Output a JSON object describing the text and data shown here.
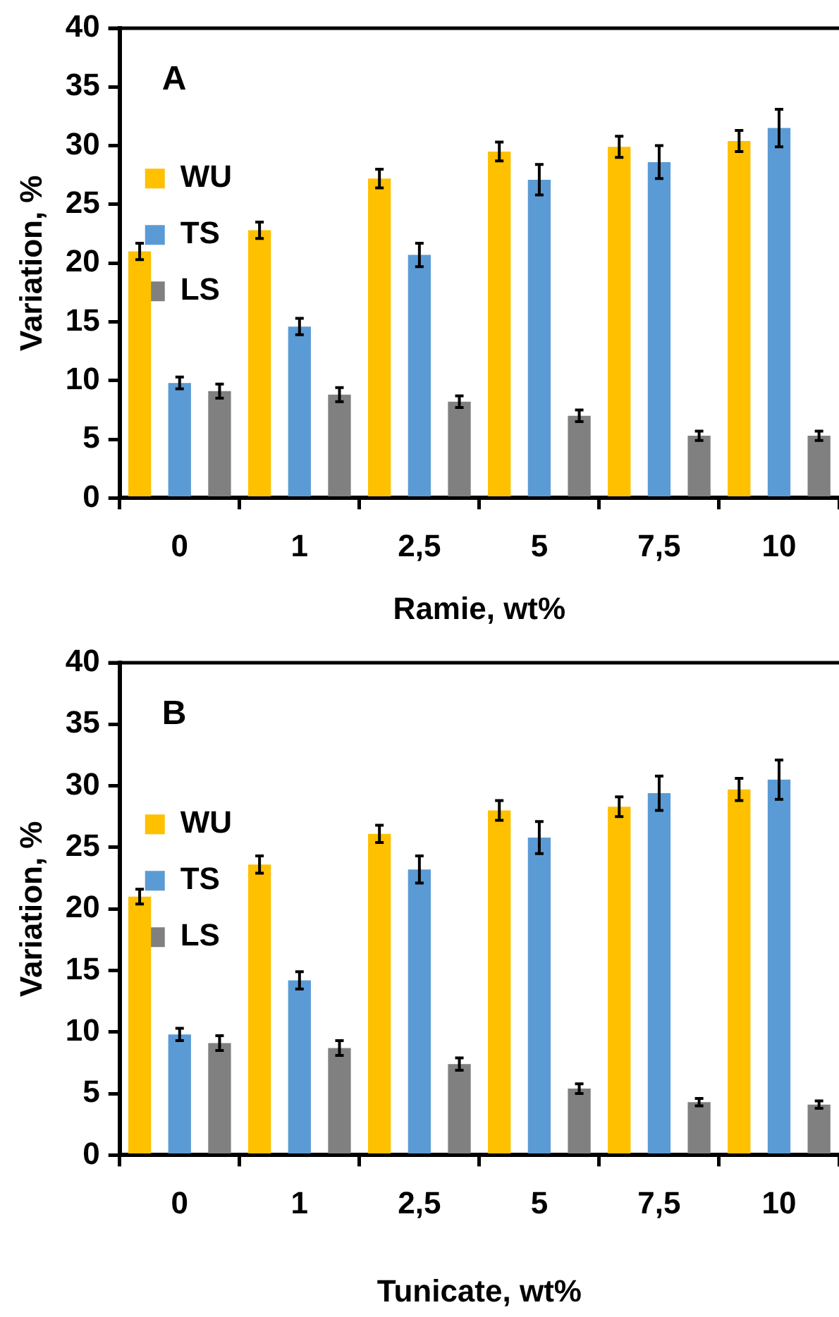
{
  "chart_data": [
    {
      "type": "bar",
      "annotations": [
        "A"
      ],
      "xlabel": "Ramie, wt%",
      "ylabel": "Variation, %",
      "categories": [
        "0",
        "1",
        "2,5",
        "5",
        "7,5",
        "10"
      ],
      "series": [
        {
          "name": "WU",
          "color": "#ffc000",
          "values": [
            21.0,
            22.8,
            27.2,
            29.5,
            29.9,
            30.4
          ],
          "errors": [
            0.7,
            0.7,
            0.8,
            0.8,
            0.9,
            0.9
          ]
        },
        {
          "name": "TS",
          "color": "#5b9bd5",
          "values": [
            9.8,
            14.6,
            20.7,
            27.1,
            28.6,
            31.5
          ],
          "errors": [
            0.5,
            0.7,
            1.0,
            1.3,
            1.4,
            1.6
          ]
        },
        {
          "name": "LS",
          "color": "#808080",
          "values": [
            9.1,
            8.8,
            8.2,
            7.0,
            5.3,
            5.3
          ],
          "errors": [
            0.6,
            0.6,
            0.5,
            0.5,
            0.4,
            0.4
          ]
        }
      ],
      "ylim": [
        0,
        40
      ],
      "yticks": [
        0,
        5,
        10,
        15,
        20,
        25,
        30,
        35,
        40
      ],
      "grid": false,
      "legend": "top"
    },
    {
      "type": "bar",
      "annotations": [
        "B"
      ],
      "xlabel": "Tunicate, wt%",
      "ylabel": "Variation, %",
      "categories": [
        "0",
        "1",
        "2,5",
        "5",
        "7,5",
        "10"
      ],
      "series": [
        {
          "name": "WU",
          "color": "#ffc000",
          "values": [
            21.0,
            23.6,
            26.1,
            28.0,
            28.3,
            29.7
          ],
          "errors": [
            0.6,
            0.7,
            0.7,
            0.8,
            0.8,
            0.9
          ]
        },
        {
          "name": "TS",
          "color": "#5b9bd5",
          "values": [
            9.8,
            14.2,
            23.2,
            25.8,
            29.4,
            30.5
          ],
          "errors": [
            0.5,
            0.7,
            1.1,
            1.3,
            1.4,
            1.6
          ]
        },
        {
          "name": "LS",
          "color": "#808080",
          "values": [
            9.1,
            8.7,
            7.4,
            5.4,
            4.3,
            4.1
          ],
          "errors": [
            0.6,
            0.6,
            0.5,
            0.4,
            0.3,
            0.3
          ]
        }
      ],
      "ylim": [
        0,
        40
      ],
      "yticks": [
        0,
        5,
        10,
        15,
        20,
        25,
        30,
        35,
        40
      ],
      "grid": false,
      "legend": "top"
    }
  ]
}
